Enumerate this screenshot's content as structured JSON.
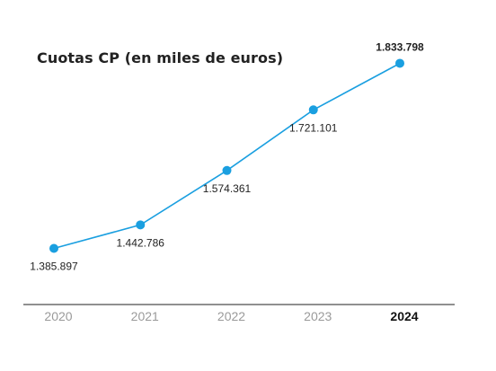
{
  "title": "Cuotas CP (en miles de euros)",
  "colors": {
    "line": "#1a9fe0",
    "axis": "#222222",
    "tick_muted": "#9a9a9a",
    "tick_highlight": "#111111"
  },
  "chart_data": {
    "type": "line",
    "title": "Cuotas CP (en miles de euros)",
    "xlabel": "",
    "ylabel": "",
    "categories": [
      "2020",
      "2021",
      "2022",
      "2023",
      "2024"
    ],
    "highlight_category": "2024",
    "ylim": [
      1250000,
      1900000
    ],
    "grid": false,
    "legend": "none",
    "series": [
      {
        "values": [
          1385897,
          1442786,
          1574361,
          1721101,
          1833798
        ],
        "labels": [
          "1.385.897",
          "1.442.786",
          "1.574.361",
          "1.721.101",
          "1.833.798"
        ],
        "label_position": [
          "below",
          "below",
          "below",
          "below",
          "above"
        ]
      }
    ]
  }
}
